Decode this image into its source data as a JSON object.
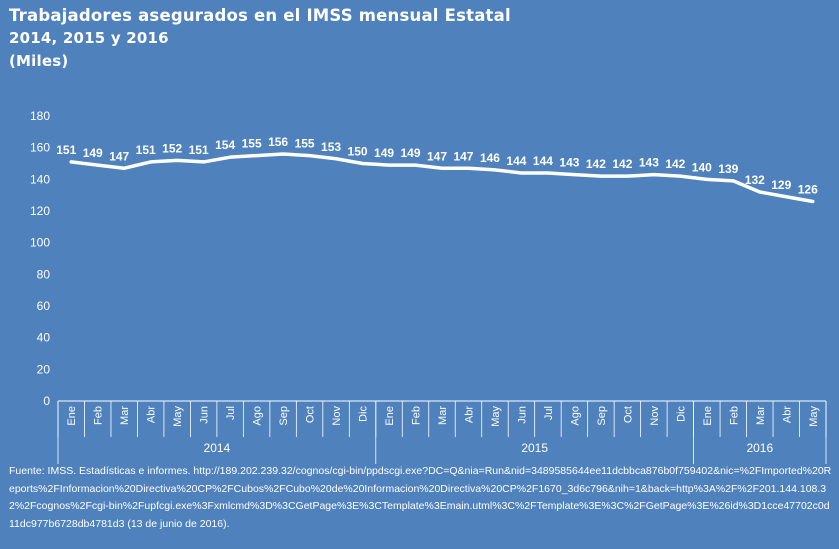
{
  "title": {
    "line1": "Trabajadores asegurados en el IMSS mensual Estatal",
    "line2": "2014, 2015 y 2016",
    "line3": "(Miles)"
  },
  "source": "Fuente: IMSS. Estadísticas e informes. http://189.202.239.32/cognos/cgi-bin/ppdscgi.exe?DC=Q&nia=Run&nid=3489585644ee11dcbbca876b0f759402&nic=%2FImported%20Reports%2FInformacion%20Directiva%20CP%2FCubos%2FCubo%20de%20Informacion%20Directiva%20CP%2F1670_3d6c796&nih=1&back=http%3A%2F%2F201.144.108.32%2Fcognos%2Fcgi-bin%2Fupfcgi.exe%3Fxmlcmd%3D%3CGetPage%3E%3CTemplate%3Emain.utml%3C%2FTemplate%3E%3C%2FGetPage%3E%26id%3D1cce47702c0d11dc977b6728db4781d3 (13 de junio de 2016).",
  "colors": {
    "background": "#4f81bd",
    "line": "#ffffff",
    "text": "#ffffff"
  },
  "chart_data": {
    "type": "line",
    "categories": [
      "Ene",
      "Feb",
      "Mar",
      "Abr",
      "May",
      "Jun",
      "Jul",
      "Ago",
      "Sep",
      "Oct",
      "Nov",
      "Dic",
      "Ene",
      "Feb",
      "Mar",
      "Abr",
      "May",
      "Jun",
      "Jul",
      "Ago",
      "Sep",
      "Oct",
      "Nov",
      "Dic",
      "Ene",
      "Feb",
      "Mar",
      "Abr",
      "May"
    ],
    "years": [
      {
        "label": "2014",
        "count": 12
      },
      {
        "label": "2015",
        "count": 12
      },
      {
        "label": "2016",
        "count": 5
      }
    ],
    "values": [
      151,
      149,
      147,
      151,
      152,
      151,
      154,
      155,
      156,
      155,
      153,
      150,
      149,
      149,
      147,
      147,
      146,
      144,
      144,
      143,
      142,
      142,
      143,
      142,
      140,
      139,
      132,
      129,
      126
    ],
    "ylim": [
      0,
      180
    ],
    "yticks": [
      0,
      20,
      40,
      60,
      80,
      100,
      120,
      140,
      160,
      180
    ],
    "grid": false,
    "legend": "none"
  }
}
